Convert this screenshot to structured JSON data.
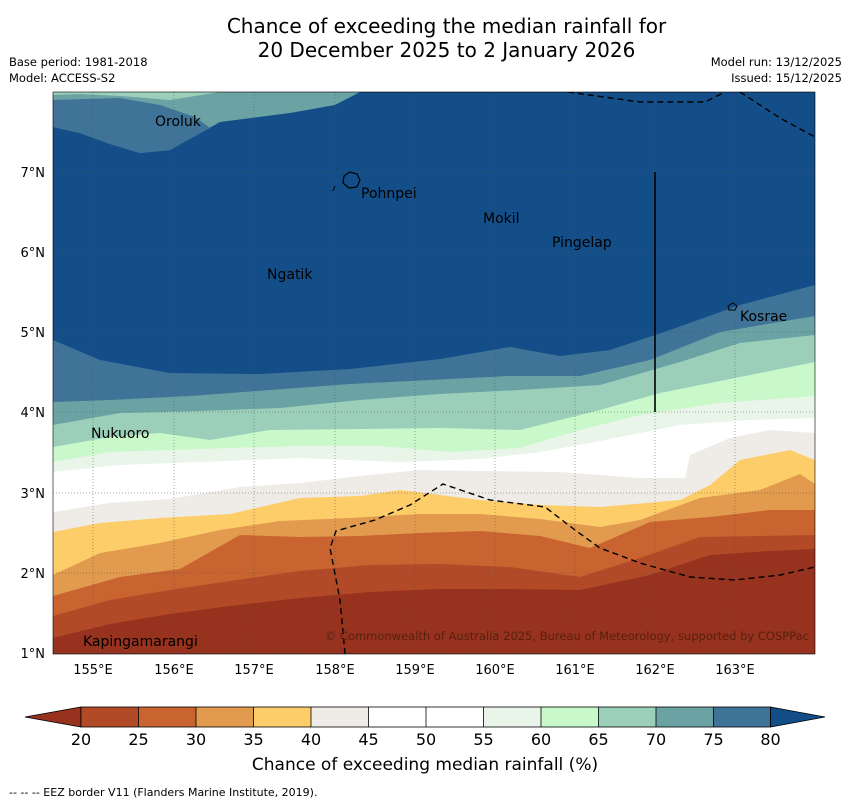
{
  "title_line1": "Chance of exceeding the median rainfall for",
  "title_line2": "20 December 2025 to 2 January 2026",
  "meta": {
    "base_period": "Base period: 1981-2018",
    "model": "Model: ACCESS-S2",
    "model_run": "Model run: 13/12/2025",
    "issued": "Issued: 15/12/2025"
  },
  "map": {
    "lat_labels": [
      "1°N",
      "2°N",
      "3°N",
      "4°N",
      "5°N",
      "6°N",
      "7°N"
    ],
    "lon_labels": [
      "155°E",
      "156°E",
      "157°E",
      "158°E",
      "159°E",
      "160°E",
      "161°E",
      "162°E",
      "163°E"
    ],
    "places": [
      {
        "name": "Oroluk"
      },
      {
        "name": "Pohnpei"
      },
      {
        "name": "Mokil"
      },
      {
        "name": "Pingelap"
      },
      {
        "name": "Ngatik"
      },
      {
        "name": "Kosrae"
      },
      {
        "name": "Nukuoro"
      },
      {
        "name": "Kapingamarangi"
      }
    ],
    "copyright": "© Commonwealth of Australia 2025, Bureau of Meteorology, supported by COSPPac"
  },
  "colorbar": {
    "title": "Chance of exceeding median rainfall (%)",
    "ticks": [
      "20",
      "25",
      "30",
      "35",
      "40",
      "45",
      "50",
      "55",
      "60",
      "65",
      "70",
      "75",
      "80"
    ],
    "colors": {
      "below20": "#96321e",
      "c20_25": "#b24a28",
      "c25_30": "#c96330",
      "c30_35": "#e19a4e",
      "c35_40": "#fdcd6a",
      "c40_45": "#efebe7",
      "c45_50": "#ffffff",
      "c50_55": "#ffffff",
      "c55_60": "#e9f5e8",
      "c60_65": "#c9f9cb",
      "c65_70": "#9ccfba",
      "c70_75": "#6ba3a4",
      "c75_80": "#3f7397",
      "above80": "#134e88"
    }
  },
  "footnote": "-- -- -- EEZ border V11 (Flanders Marine Institute, 2019)."
}
